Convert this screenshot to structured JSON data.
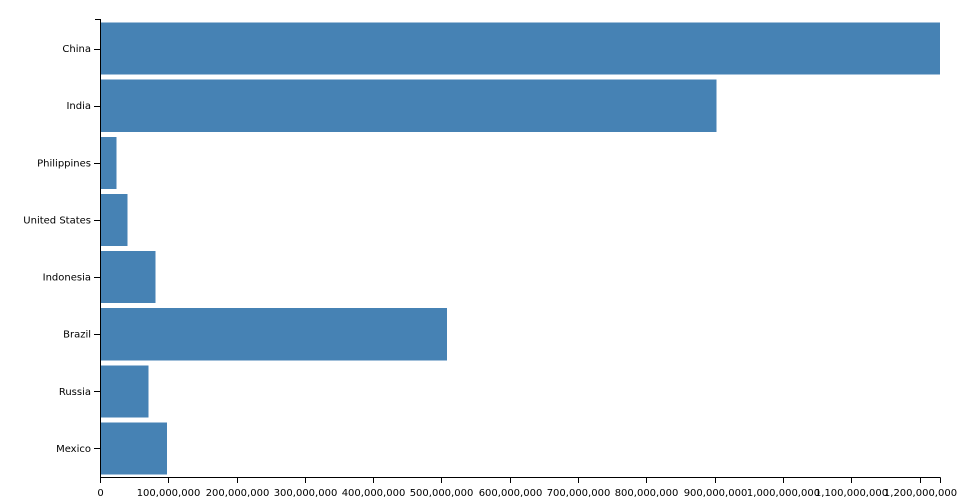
{
  "chart_data": {
    "type": "bar",
    "orientation": "horizontal",
    "categories": [
      "China",
      "India",
      "Philippines",
      "United States",
      "Indonesia",
      "Brazil",
      "Russia",
      "Mexico"
    ],
    "values": [
      1230000000,
      903000000,
      24000000,
      40000000,
      81000000,
      508000000,
      71000000,
      98000000
    ],
    "title": "",
    "xlabel": "",
    "ylabel": "",
    "xlim": [
      0,
      1230000000
    ],
    "x_ticks": [
      0,
      100000000,
      200000000,
      300000000,
      400000000,
      500000000,
      600000000,
      700000000,
      800000000,
      900000000,
      1000000000,
      1100000000,
      1200000000
    ],
    "x_tick_labels": [
      "0",
      "100,000,000",
      "200,000,000",
      "300,000,000",
      "400,000,000",
      "500,000,000",
      "600,000,000",
      "700,000,000",
      "800,000,000",
      "900,000,000",
      "1,000,000,000",
      "1,100,000,000",
      "1,200,000,000"
    ],
    "bar_color": "#4682b4",
    "grid": false,
    "legend": "none"
  }
}
